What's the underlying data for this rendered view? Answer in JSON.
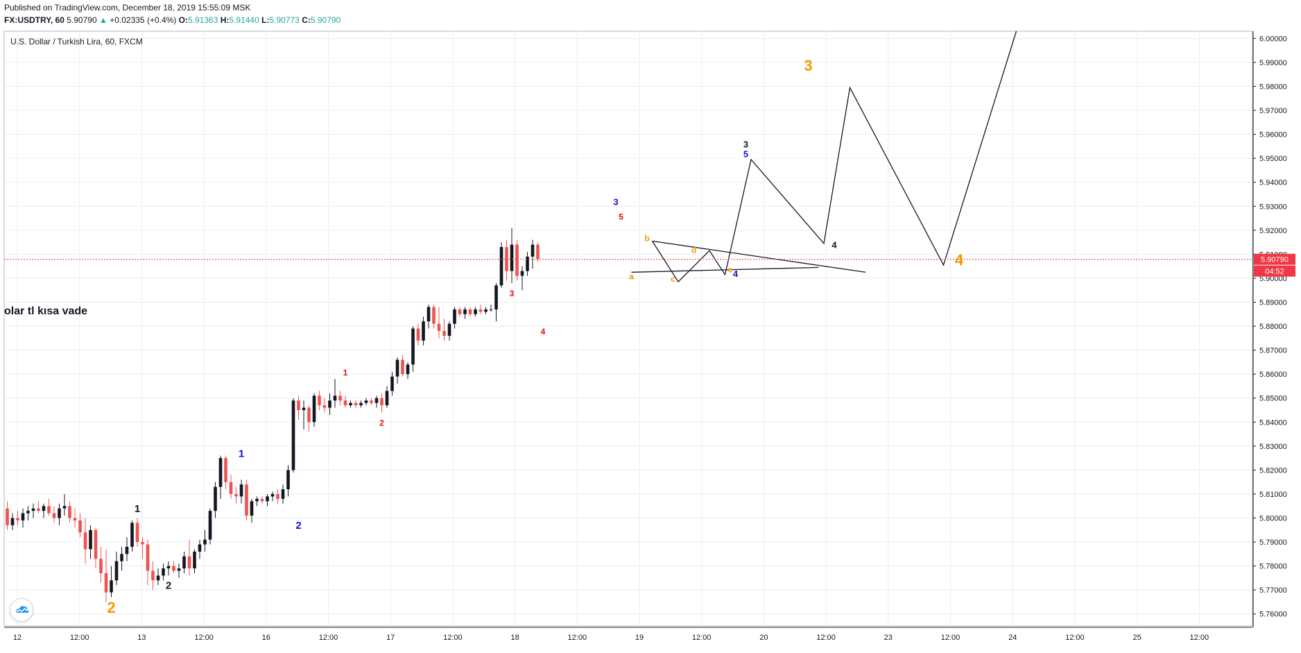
{
  "header": {
    "published": "Published on TradingView.com, December 18, 2019 15:55:09 MSK",
    "symbol": "FX:USDTRY, 60",
    "last": "5.90790",
    "change": "+0.02335 (+0.4%)",
    "o_label": "O:",
    "o": "5.91363",
    "h_label": "H:",
    "h": "5.91440",
    "l_label": "L:",
    "l": "5.90773",
    "c_label": "C:",
    "c": "5.90790"
  },
  "legend_title": "U.S. Dollar / Turkish Lira, 60, FXCM",
  "note_text": "olar tl kısa vade",
  "price_tag": "5.90790",
  "countdown_tag": "04:52",
  "colors": {
    "up": "#131722",
    "down": "#ef5350",
    "blue": "#1212d6",
    "red": "#e01212",
    "orange": "#f59a00",
    "grid": "#e9eef2",
    "priceline": "#f23645",
    "tag": "#f23645"
  },
  "chart_data": {
    "type": "candlestick",
    "ylim": [
      5.755,
      6.003
    ],
    "y_ticks": [
      "6.00000",
      "5.99000",
      "5.98000",
      "5.97000",
      "5.96000",
      "5.95000",
      "5.94000",
      "5.93000",
      "5.92000",
      "5.91000",
      "5.90000",
      "5.89000",
      "5.88000",
      "5.87000",
      "5.86000",
      "5.85000",
      "5.84000",
      "5.83000",
      "5.82000",
      "5.81000",
      "5.80000",
      "5.79000",
      "5.78000",
      "5.77000",
      "5.76000"
    ],
    "x_ticks": [
      "12",
      "12:00",
      "13",
      "12:00",
      "16",
      "12:00",
      "17",
      "12:00",
      "18",
      "12:00",
      "19",
      "12:00",
      "20",
      "12:00",
      "23",
      "12:00",
      "24",
      "12:00",
      "25",
      "12:00"
    ],
    "last_price": 5.9079,
    "candles": [
      [
        5.804,
        5.807,
        5.795,
        5.797
      ],
      [
        5.797,
        5.802,
        5.795,
        5.8
      ],
      [
        5.8,
        5.803,
        5.797,
        5.799
      ],
      [
        5.799,
        5.804,
        5.796,
        5.802
      ],
      [
        5.802,
        5.805,
        5.799,
        5.803
      ],
      [
        5.803,
        5.806,
        5.8,
        5.804
      ],
      [
        5.804,
        5.807,
        5.802,
        5.803
      ],
      [
        5.803,
        5.806,
        5.8,
        5.805
      ],
      [
        5.805,
        5.808,
        5.801,
        5.802
      ],
      [
        5.802,
        5.805,
        5.798,
        5.8
      ],
      [
        5.8,
        5.806,
        5.797,
        5.804
      ],
      [
        5.804,
        5.81,
        5.801,
        5.805
      ],
      [
        5.805,
        5.807,
        5.798,
        5.8
      ],
      [
        5.8,
        5.804,
        5.796,
        5.799
      ],
      [
        5.799,
        5.802,
        5.792,
        5.794
      ],
      [
        5.794,
        5.8,
        5.781,
        5.787
      ],
      [
        5.787,
        5.797,
        5.783,
        5.795
      ],
      [
        5.795,
        5.796,
        5.779,
        5.783
      ],
      [
        5.783,
        5.788,
        5.773,
        5.777
      ],
      [
        5.777,
        5.787,
        5.765,
        5.769
      ],
      [
        5.769,
        5.78,
        5.767,
        5.774
      ],
      [
        5.774,
        5.786,
        5.772,
        5.782
      ],
      [
        5.782,
        5.788,
        5.778,
        5.785
      ],
      [
        5.785,
        5.792,
        5.782,
        5.788
      ],
      [
        5.788,
        5.799,
        5.786,
        5.798
      ],
      [
        5.798,
        5.8,
        5.788,
        5.79
      ],
      [
        5.79,
        5.792,
        5.783,
        5.789
      ],
      [
        5.789,
        5.791,
        5.772,
        5.778
      ],
      [
        5.778,
        5.782,
        5.77,
        5.774
      ],
      [
        5.774,
        5.779,
        5.772,
        5.776
      ],
      [
        5.776,
        5.781,
        5.774,
        5.779
      ],
      [
        5.779,
        5.782,
        5.776,
        5.78
      ],
      [
        5.78,
        5.782,
        5.777,
        5.778
      ],
      [
        5.778,
        5.781,
        5.775,
        5.779
      ],
      [
        5.779,
        5.786,
        5.777,
        5.784
      ],
      [
        5.784,
        5.791,
        5.776,
        5.779
      ],
      [
        5.779,
        5.787,
        5.777,
        5.786
      ],
      [
        5.786,
        5.791,
        5.783,
        5.789
      ],
      [
        5.789,
        5.795,
        5.786,
        5.791
      ],
      [
        5.791,
        5.804,
        5.789,
        5.803
      ],
      [
        5.803,
        5.815,
        5.8,
        5.813
      ],
      [
        5.813,
        5.826,
        5.808,
        5.825
      ],
      [
        5.825,
        5.826,
        5.812,
        5.815
      ],
      [
        5.815,
        5.818,
        5.808,
        5.81
      ],
      [
        5.81,
        5.813,
        5.806,
        5.809
      ],
      [
        5.809,
        5.816,
        5.806,
        5.814
      ],
      [
        5.814,
        5.816,
        5.799,
        5.801
      ],
      [
        5.801,
        5.808,
        5.798,
        5.807
      ],
      [
        5.807,
        5.809,
        5.805,
        5.808
      ],
      [
        5.808,
        5.809,
        5.806,
        5.807
      ],
      [
        5.807,
        5.81,
        5.805,
        5.809
      ],
      [
        5.809,
        5.811,
        5.807,
        5.81
      ],
      [
        5.81,
        5.812,
        5.806,
        5.808
      ],
      [
        5.808,
        5.814,
        5.806,
        5.812
      ],
      [
        5.812,
        5.822,
        5.809,
        5.82
      ],
      [
        5.82,
        5.85,
        5.819,
        5.849
      ],
      [
        5.849,
        5.851,
        5.841,
        5.845
      ],
      [
        5.845,
        5.849,
        5.837,
        5.846
      ],
      [
        5.846,
        5.847,
        5.836,
        5.84
      ],
      [
        5.84,
        5.852,
        5.838,
        5.851
      ],
      [
        5.851,
        5.853,
        5.845,
        5.847
      ],
      [
        5.847,
        5.85,
        5.844,
        5.846
      ],
      [
        5.846,
        5.852,
        5.843,
        5.849
      ],
      [
        5.849,
        5.858,
        5.846,
        5.851
      ],
      [
        5.851,
        5.853,
        5.847,
        5.849
      ],
      [
        5.849,
        5.851,
        5.846,
        5.847
      ],
      [
        5.847,
        5.849,
        5.846,
        5.848
      ],
      [
        5.848,
        5.849,
        5.846,
        5.847
      ],
      [
        5.847,
        5.849,
        5.846,
        5.848
      ],
      [
        5.848,
        5.85,
        5.847,
        5.849
      ],
      [
        5.849,
        5.85,
        5.847,
        5.848
      ],
      [
        5.848,
        5.851,
        5.846,
        5.85
      ],
      [
        5.85,
        5.852,
        5.844,
        5.847
      ],
      [
        5.847,
        5.855,
        5.846,
        5.853
      ],
      [
        5.853,
        5.861,
        5.851,
        5.859
      ],
      [
        5.859,
        5.867,
        5.856,
        5.866
      ],
      [
        5.866,
        5.868,
        5.859,
        5.86
      ],
      [
        5.86,
        5.865,
        5.858,
        5.864
      ],
      [
        5.864,
        5.88,
        5.861,
        5.879
      ],
      [
        5.879,
        5.881,
        5.872,
        5.874
      ],
      [
        5.874,
        5.884,
        5.872,
        5.882
      ],
      [
        5.882,
        5.889,
        5.879,
        5.888
      ],
      [
        5.888,
        5.889,
        5.879,
        5.881
      ],
      [
        5.881,
        5.888,
        5.875,
        5.878
      ],
      [
        5.878,
        5.883,
        5.874,
        5.876
      ],
      [
        5.876,
        5.882,
        5.874,
        5.881
      ],
      [
        5.881,
        5.888,
        5.879,
        5.887
      ],
      [
        5.887,
        5.888,
        5.884,
        5.885
      ],
      [
        5.885,
        5.888,
        5.883,
        5.887
      ],
      [
        5.887,
        5.888,
        5.884,
        5.885
      ],
      [
        5.885,
        5.888,
        5.884,
        5.887
      ],
      [
        5.887,
        5.889,
        5.885,
        5.886
      ],
      [
        5.886,
        5.888,
        5.885,
        5.887
      ],
      [
        5.887,
        5.889,
        5.886,
        5.887
      ],
      [
        5.887,
        5.898,
        5.882,
        5.897
      ],
      [
        5.897,
        5.915,
        5.896,
        5.913
      ],
      [
        5.913,
        5.916,
        5.899,
        5.903
      ],
      [
        5.903,
        5.921,
        5.898,
        5.914
      ],
      [
        5.914,
        5.916,
        5.899,
        5.901
      ],
      [
        5.901,
        5.905,
        5.895,
        5.903
      ],
      [
        5.903,
        5.911,
        5.901,
        5.909
      ],
      [
        5.909,
        5.916,
        5.904,
        5.914
      ],
      [
        5.914,
        5.915,
        5.907,
        5.908
      ]
    ],
    "wave_labels": [
      {
        "text": "1",
        "t": 25,
        "p": 5.8025,
        "color": "black"
      },
      {
        "text": "2",
        "t": 31,
        "p": 5.7705,
        "color": "black"
      },
      {
        "text": "1",
        "t": 45,
        "p": 5.8255,
        "color": "blue"
      },
      {
        "text": "2",
        "t": 56,
        "p": 5.7955,
        "color": "blue"
      },
      {
        "text": "1",
        "t": 65,
        "p": 5.8595,
        "color": "red"
      },
      {
        "text": "2",
        "t": 72,
        "p": 5.8385,
        "color": "red"
      },
      {
        "text": "3",
        "t": 97,
        "p": 5.8925,
        "color": "red"
      },
      {
        "text": "4",
        "t": 103,
        "p": 5.8765,
        "color": "red"
      },
      {
        "text": "3",
        "t": 117,
        "p": 5.9305,
        "color": "blue"
      },
      {
        "text": "5",
        "t": 118,
        "p": 5.9245,
        "color": "red"
      },
      {
        "text": "a",
        "t": 120,
        "p": 5.8995,
        "color": "orange"
      },
      {
        "text": "b",
        "t": 123,
        "p": 5.9155,
        "color": "orange"
      },
      {
        "text": "c",
        "t": 128,
        "p": 5.8985,
        "color": "orange"
      },
      {
        "text": "d",
        "t": 132,
        "p": 5.9105,
        "color": "orange"
      },
      {
        "text": "e",
        "t": 139,
        "p": 5.9025,
        "color": "orange"
      },
      {
        "text": "4",
        "t": 140,
        "p": 5.9005,
        "color": "blue"
      },
      {
        "text": "3",
        "t": 142,
        "p": 5.9545,
        "color": "black"
      },
      {
        "text": "5",
        "t": 142,
        "p": 5.9505,
        "color": "blue"
      },
      {
        "text": "4",
        "t": 159,
        "p": 5.9125,
        "color": "black"
      },
      {
        "text": "3",
        "t": 154,
        "p": 5.9865,
        "color": "orange"
      },
      {
        "text": "4",
        "t": 183,
        "p": 5.9055,
        "color": "orange"
      },
      {
        "text": "2",
        "t": 20,
        "p": 5.7605,
        "color": "orange"
      }
    ],
    "triangle_upper": [
      [
        124,
        5.9155
      ],
      [
        165,
        5.9025
      ]
    ],
    "triangle_lower": [
      [
        120,
        5.9025
      ],
      [
        156,
        5.9045
      ]
    ],
    "triangle_zigzag": [
      [
        124,
        5.9155
      ],
      [
        129,
        5.8985
      ],
      [
        135,
        5.9115
      ],
      [
        138,
        5.9015
      ],
      [
        143,
        5.9495
      ],
      [
        157,
        5.9145
      ],
      [
        162,
        5.9795
      ],
      [
        180,
        5.9055
      ],
      [
        194,
        6.003
      ]
    ]
  }
}
